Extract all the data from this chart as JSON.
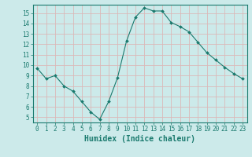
{
  "x": [
    0,
    1,
    2,
    3,
    4,
    5,
    6,
    7,
    8,
    9,
    10,
    11,
    12,
    13,
    14,
    15,
    16,
    17,
    18,
    19,
    20,
    21,
    22,
    23
  ],
  "y": [
    9.7,
    8.7,
    9.0,
    8.0,
    7.5,
    6.5,
    5.5,
    4.8,
    6.5,
    8.8,
    12.3,
    14.6,
    15.5,
    15.2,
    15.2,
    14.1,
    13.7,
    13.2,
    12.2,
    11.2,
    10.5,
    9.8,
    9.2,
    8.7
  ],
  "line_color": "#1a7a6e",
  "marker": "D",
  "marker_size": 2,
  "bg_color": "#cceaea",
  "grid_color": "#dbb8b8",
  "axis_color": "#1a7a6e",
  "xlabel": "Humidex (Indice chaleur)",
  "xlim": [
    -0.5,
    23.5
  ],
  "ylim": [
    4.5,
    15.8
  ],
  "yticks": [
    5,
    6,
    7,
    8,
    9,
    10,
    11,
    12,
    13,
    14,
    15
  ],
  "xticks": [
    0,
    1,
    2,
    3,
    4,
    5,
    6,
    7,
    8,
    9,
    10,
    11,
    12,
    13,
    14,
    15,
    16,
    17,
    18,
    19,
    20,
    21,
    22,
    23
  ],
  "tick_fontsize": 5.5,
  "label_fontsize": 7
}
